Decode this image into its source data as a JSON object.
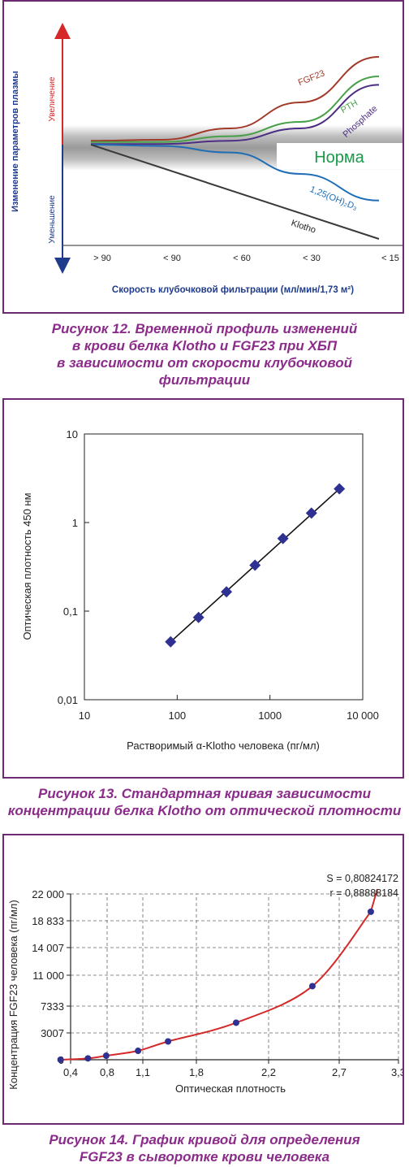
{
  "chart_data": [
    {
      "type": "line",
      "ylabel": "Изменение параметров плазмы",
      "y_up_label": "Увеличение",
      "y_down_label": "Уменьшение",
      "xlabel": "Скорость клубочковой фильтрации (мл/мин/1,73 м²)",
      "categories": [
        "> 90",
        "< 90",
        "< 60",
        "< 30",
        "< 15"
      ],
      "band_label": "Норма",
      "series": [
        {
          "name": "FGF23",
          "color": "#a23a2a",
          "values": [
            0.6,
            0.75,
            2.5,
            6.5,
            13.5
          ]
        },
        {
          "name": "PTH",
          "color": "#4aa04a",
          "values": [
            0.4,
            0.4,
            1.3,
            3.5,
            10.5
          ]
        },
        {
          "name": "Phosphate",
          "color": "#4b2e83",
          "values": [
            0.1,
            0.1,
            0.6,
            2.5,
            9.2
          ]
        },
        {
          "name": "1,25(OH)₂D₃",
          "color": "#1f6db5",
          "values": [
            0,
            -0.2,
            -1.2,
            -4.5,
            -8.6
          ]
        },
        {
          "name": "Klotho",
          "color": "#3a3a3a",
          "values": [
            0,
            -2.5,
            -6.5,
            -11,
            -14.5
          ]
        }
      ]
    },
    {
      "type": "scatter",
      "xlabel": "Растворимый α-Klotho человека (пг/мл)",
      "ylabel": "Оптическая плотность 450 нм",
      "xscale": "log",
      "yscale": "log",
      "xlim": [
        10,
        10000
      ],
      "ylim": [
        0.01,
        10
      ],
      "xticks": [
        "10",
        "100",
        "1000",
        "10 000"
      ],
      "yticks": [
        "0,01",
        "0,1",
        "1",
        "10"
      ],
      "marker": "diamond",
      "color": "#2e3192",
      "points": [
        {
          "x": 85,
          "y": 0.045
        },
        {
          "x": 170,
          "y": 0.085
        },
        {
          "x": 340,
          "y": 0.165
        },
        {
          "x": 690,
          "y": 0.33
        },
        {
          "x": 1380,
          "y": 0.66
        },
        {
          "x": 2800,
          "y": 1.28
        },
        {
          "x": 5600,
          "y": 2.4
        }
      ],
      "fit_line": true
    },
    {
      "type": "scatter",
      "xlabel": "Оптическая плотность",
      "ylabel": "Концентрация FGF23 человека (пг/мл)",
      "xticks": [
        "0,4",
        "0,8",
        "1,1",
        "1,8",
        "2,2",
        "2,7",
        "3,3"
      ],
      "yticks": [
        "0",
        "3007",
        "7333",
        "11 000",
        "14 007",
        "18 833",
        "22 000"
      ],
      "stats": [
        "S = 0,80824172",
        "r = 0,88888184"
      ],
      "grid": true,
      "curve_color": "#d42a2a",
      "point_color": "#2e3192",
      "points": [
        {
          "x": 0.29,
          "y": 0
        },
        {
          "x": 0.59,
          "y": 150
        },
        {
          "x": 0.79,
          "y": 450
        },
        {
          "x": 1.06,
          "y": 1000
        },
        {
          "x": 1.43,
          "y": 2050
        },
        {
          "x": 2.02,
          "y": 4650
        },
        {
          "x": 2.51,
          "y": 9700
        },
        {
          "x": 3.02,
          "y": 19900
        }
      ]
    }
  ],
  "captions": {
    "fig12": [
      "Рисунок 12. Временной профиль изменений",
      "в крови белка Klotho и FGF23 при ХБП",
      "в зависимости от скорости клубочковой",
      "фильтрации"
    ],
    "fig13": [
      "Рисунок 13. Стандартная кривая зависимости",
      "концентрации белка Klotho от оптической плотности"
    ],
    "fig14": [
      "Рисунок 14. График кривой для определения",
      "FGF23 в сыворотке крови человека"
    ]
  }
}
